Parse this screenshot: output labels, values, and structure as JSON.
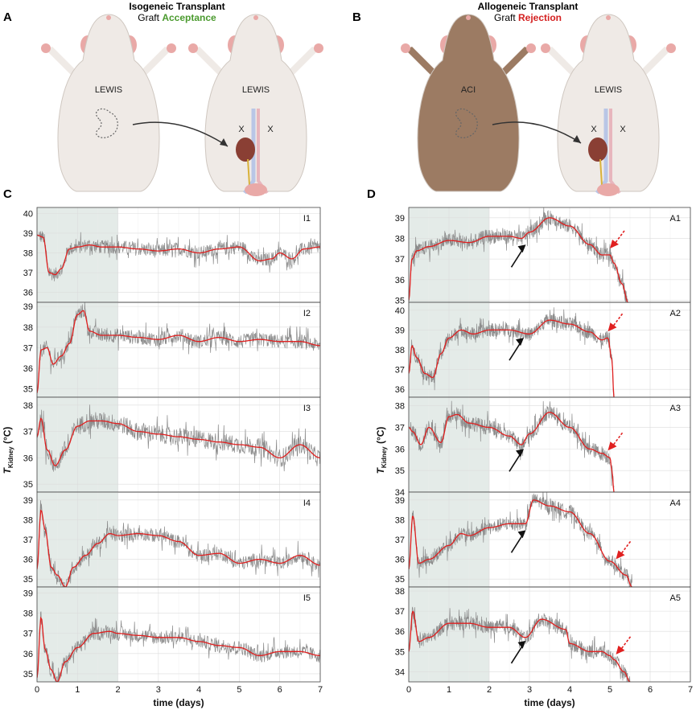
{
  "figure": {
    "panel_a": {
      "letter": "A",
      "title": "Isogeneic Transplant",
      "subtitle_prefix": "Graft ",
      "subtitle_highlight": "Acceptance",
      "highlight_color": "#4a9a2e",
      "donor_label": "LEWIS",
      "recipient_label": "LEWIS",
      "x_mark_1": "X",
      "x_mark_2": "X",
      "donor_color": "#efeae6"
    },
    "panel_b": {
      "letter": "B",
      "title": "Allogeneic Transplant",
      "subtitle_prefix": "Graft ",
      "subtitle_highlight": "Rejection",
      "highlight_color": "#d42020",
      "donor_label": "ACI",
      "recipient_label": "LEWIS",
      "x_mark_1": "X",
      "x_mark_2": "X",
      "donor_color": "#9c7b63"
    },
    "panel_c": {
      "letter": "C"
    },
    "panel_d": {
      "letter": "D"
    },
    "ylabel_main": "T",
    "ylabel_sub": "Kidney",
    "ylabel_unit": " (°C)",
    "xlabel": "time (days)",
    "colors": {
      "fit": "#e02020",
      "raw": "#8c8c8c",
      "shade": "#e4ebe8",
      "arrow_black": "#111111",
      "arrow_red": "#e02020"
    }
  },
  "chart_data": [
    {
      "type": "line",
      "panel": "C",
      "x_ticks": [
        0,
        1,
        2,
        3,
        4,
        5,
        6,
        7
      ],
      "xlim": [
        0,
        7
      ],
      "shaded_interval_days": [
        0,
        2
      ],
      "subplots": [
        {
          "name": "I1",
          "ylim": [
            35.5,
            40.3
          ],
          "yticks": [
            36,
            37,
            38,
            39,
            40
          ],
          "x": [
            0,
            0.15,
            0.3,
            0.45,
            0.6,
            0.8,
            1.0,
            1.3,
            1.6,
            2.0,
            2.5,
            3.0,
            3.5,
            4.0,
            4.5,
            5.0,
            5.5,
            5.8,
            6.0,
            6.3,
            6.6,
            7.0
          ],
          "y": [
            38.9,
            38.8,
            37.0,
            36.9,
            37.2,
            38.2,
            38.3,
            38.4,
            38.3,
            38.3,
            38.2,
            38.1,
            38.2,
            38.0,
            38.2,
            38.3,
            37.6,
            37.7,
            38.0,
            37.7,
            38.2,
            38.3
          ]
        },
        {
          "name": "I2",
          "ylim": [
            34.6,
            39.2
          ],
          "yticks": [
            35,
            36,
            37,
            38,
            39
          ],
          "x": [
            0,
            0.1,
            0.25,
            0.4,
            0.6,
            0.8,
            1.0,
            1.15,
            1.3,
            1.6,
            2.0,
            2.5,
            3.0,
            3.5,
            4.0,
            4.5,
            5.0,
            5.5,
            6.0,
            6.5,
            7.0
          ],
          "y": [
            34.8,
            36.9,
            37.0,
            36.2,
            36.6,
            37.2,
            38.6,
            38.8,
            37.8,
            37.6,
            37.6,
            37.5,
            37.4,
            37.6,
            37.3,
            37.5,
            37.3,
            37.4,
            37.3,
            37.3,
            37.1
          ]
        },
        {
          "name": "I3",
          "ylim": [
            34.7,
            38.3
          ],
          "yticks": [
            35,
            36,
            37,
            38
          ],
          "x": [
            0,
            0.1,
            0.25,
            0.45,
            0.7,
            1.0,
            1.3,
            1.6,
            2.0,
            2.5,
            3.0,
            3.5,
            4.0,
            4.5,
            5.0,
            5.5,
            6.0,
            6.5,
            7.0
          ],
          "y": [
            36.8,
            37.5,
            36.3,
            35.7,
            36.3,
            37.2,
            37.4,
            37.4,
            37.3,
            37.0,
            36.9,
            36.8,
            36.7,
            36.6,
            36.5,
            36.4,
            36.0,
            36.5,
            36.0
          ]
        },
        {
          "name": "I4",
          "ylim": [
            34.6,
            39.4
          ],
          "yticks": [
            35,
            36,
            37,
            38,
            39
          ],
          "x": [
            0,
            0.1,
            0.2,
            0.35,
            0.5,
            0.7,
            0.9,
            1.2,
            1.5,
            1.8,
            2.0,
            2.5,
            3.0,
            3.5,
            4.0,
            4.5,
            5.0,
            5.5,
            6.0,
            6.5,
            7.0
          ],
          "y": [
            35.5,
            38.5,
            37.5,
            35.6,
            35.2,
            34.6,
            35.6,
            36.2,
            36.8,
            37.3,
            37.2,
            37.3,
            37.2,
            36.9,
            36.2,
            36.3,
            35.8,
            36.0,
            35.8,
            36.2,
            35.7
          ]
        },
        {
          "name": "I5",
          "ylim": [
            34.6,
            39.3
          ],
          "yticks": [
            35,
            36,
            37,
            38,
            39
          ],
          "x": [
            0,
            0.1,
            0.2,
            0.35,
            0.5,
            0.7,
            1.0,
            1.4,
            1.8,
            2.0,
            2.5,
            3.0,
            3.5,
            4.0,
            4.5,
            5.0,
            5.5,
            6.0,
            6.5,
            7.0
          ],
          "y": [
            34.8,
            37.8,
            36.2,
            35.2,
            34.6,
            35.6,
            36.3,
            37.0,
            37.1,
            37.0,
            36.9,
            36.8,
            36.8,
            36.6,
            36.4,
            36.3,
            35.9,
            36.1,
            36.1,
            35.9
          ]
        }
      ]
    },
    {
      "type": "line",
      "panel": "D",
      "x_ticks": [
        0,
        1,
        2,
        3,
        4,
        5,
        6,
        7
      ],
      "xlim": [
        0,
        7
      ],
      "shaded_interval_days": [
        0,
        2
      ],
      "subplots": [
        {
          "name": "A1",
          "ylim": [
            34.9,
            39.5
          ],
          "yticks": [
            35,
            36,
            37,
            38,
            39
          ],
          "x": [
            0,
            0.08,
            0.2,
            0.5,
            1.0,
            1.5,
            2.0,
            2.5,
            2.8,
            3.0,
            3.5,
            4.0,
            4.5,
            4.8,
            5.0,
            5.1,
            5.3,
            5.45
          ],
          "y": [
            35.0,
            37.0,
            37.4,
            37.6,
            37.9,
            37.8,
            38.1,
            38.1,
            38.0,
            38.3,
            39.0,
            38.6,
            37.7,
            37.2,
            37.2,
            36.8,
            35.8,
            34.9
          ],
          "black_arrow_day": 2.75,
          "red_arrow_day": 5.0
        },
        {
          "name": "A2",
          "ylim": [
            35.6,
            40.4
          ],
          "yticks": [
            36,
            37,
            38,
            39,
            40
          ],
          "x": [
            0,
            0.08,
            0.2,
            0.4,
            0.6,
            0.8,
            1.0,
            1.3,
            1.6,
            2.0,
            2.5,
            3.0,
            3.5,
            4.0,
            4.5,
            4.8,
            4.95,
            5.05,
            5.1
          ],
          "y": [
            36.8,
            38.2,
            37.6,
            36.8,
            36.6,
            37.8,
            38.6,
            39.0,
            38.8,
            39.0,
            39.0,
            38.8,
            39.5,
            39.3,
            38.9,
            38.5,
            38.6,
            37.5,
            35.6
          ],
          "black_arrow_day": 2.7,
          "red_arrow_day": 4.95
        },
        {
          "name": "A3",
          "ylim": [
            34.0,
            38.4
          ],
          "yticks": [
            34,
            35,
            36,
            37,
            38
          ],
          "x": [
            0,
            0.1,
            0.3,
            0.5,
            0.8,
            1.0,
            1.2,
            1.5,
            2.0,
            2.5,
            2.8,
            3.0,
            3.5,
            4.0,
            4.5,
            4.8,
            5.0,
            5.05,
            5.1
          ],
          "y": [
            37.0,
            36.8,
            36.2,
            37.0,
            36.3,
            37.5,
            37.6,
            37.2,
            37.0,
            36.6,
            36.2,
            36.7,
            37.7,
            37.0,
            36.0,
            35.8,
            35.6,
            35.0,
            34.0
          ],
          "black_arrow_day": 2.7,
          "red_arrow_day": 4.95
        },
        {
          "name": "A4",
          "ylim": [
            34.6,
            39.4
          ],
          "yticks": [
            35,
            36,
            37,
            38,
            39
          ],
          "x": [
            0,
            0.1,
            0.25,
            0.5,
            1.0,
            1.3,
            1.5,
            2.0,
            2.5,
            2.9,
            3.1,
            3.5,
            4.0,
            4.5,
            5.0,
            5.4,
            5.55
          ],
          "y": [
            35.5,
            38.2,
            35.8,
            36.0,
            36.7,
            37.3,
            37.2,
            37.6,
            37.8,
            37.8,
            39.0,
            38.7,
            38.4,
            37.3,
            35.9,
            35.2,
            34.6
          ],
          "black_arrow_day": 2.75,
          "red_arrow_day": 5.15
        },
        {
          "name": "A5",
          "ylim": [
            33.5,
            38.2
          ],
          "yticks": [
            34,
            35,
            36,
            37,
            38
          ],
          "x": [
            0,
            0.1,
            0.25,
            0.5,
            1.0,
            1.5,
            2.0,
            2.5,
            2.9,
            3.3,
            3.9,
            4.0,
            4.5,
            4.8,
            5.0,
            5.1,
            5.35,
            5.5
          ],
          "y": [
            35.0,
            37.0,
            35.5,
            35.7,
            36.4,
            36.4,
            36.2,
            36.2,
            35.7,
            36.6,
            36.1,
            35.4,
            35.0,
            35.0,
            34.8,
            34.6,
            34.0,
            33.5
          ],
          "black_arrow_day": 2.75,
          "red_arrow_day": 5.15
        }
      ]
    }
  ]
}
